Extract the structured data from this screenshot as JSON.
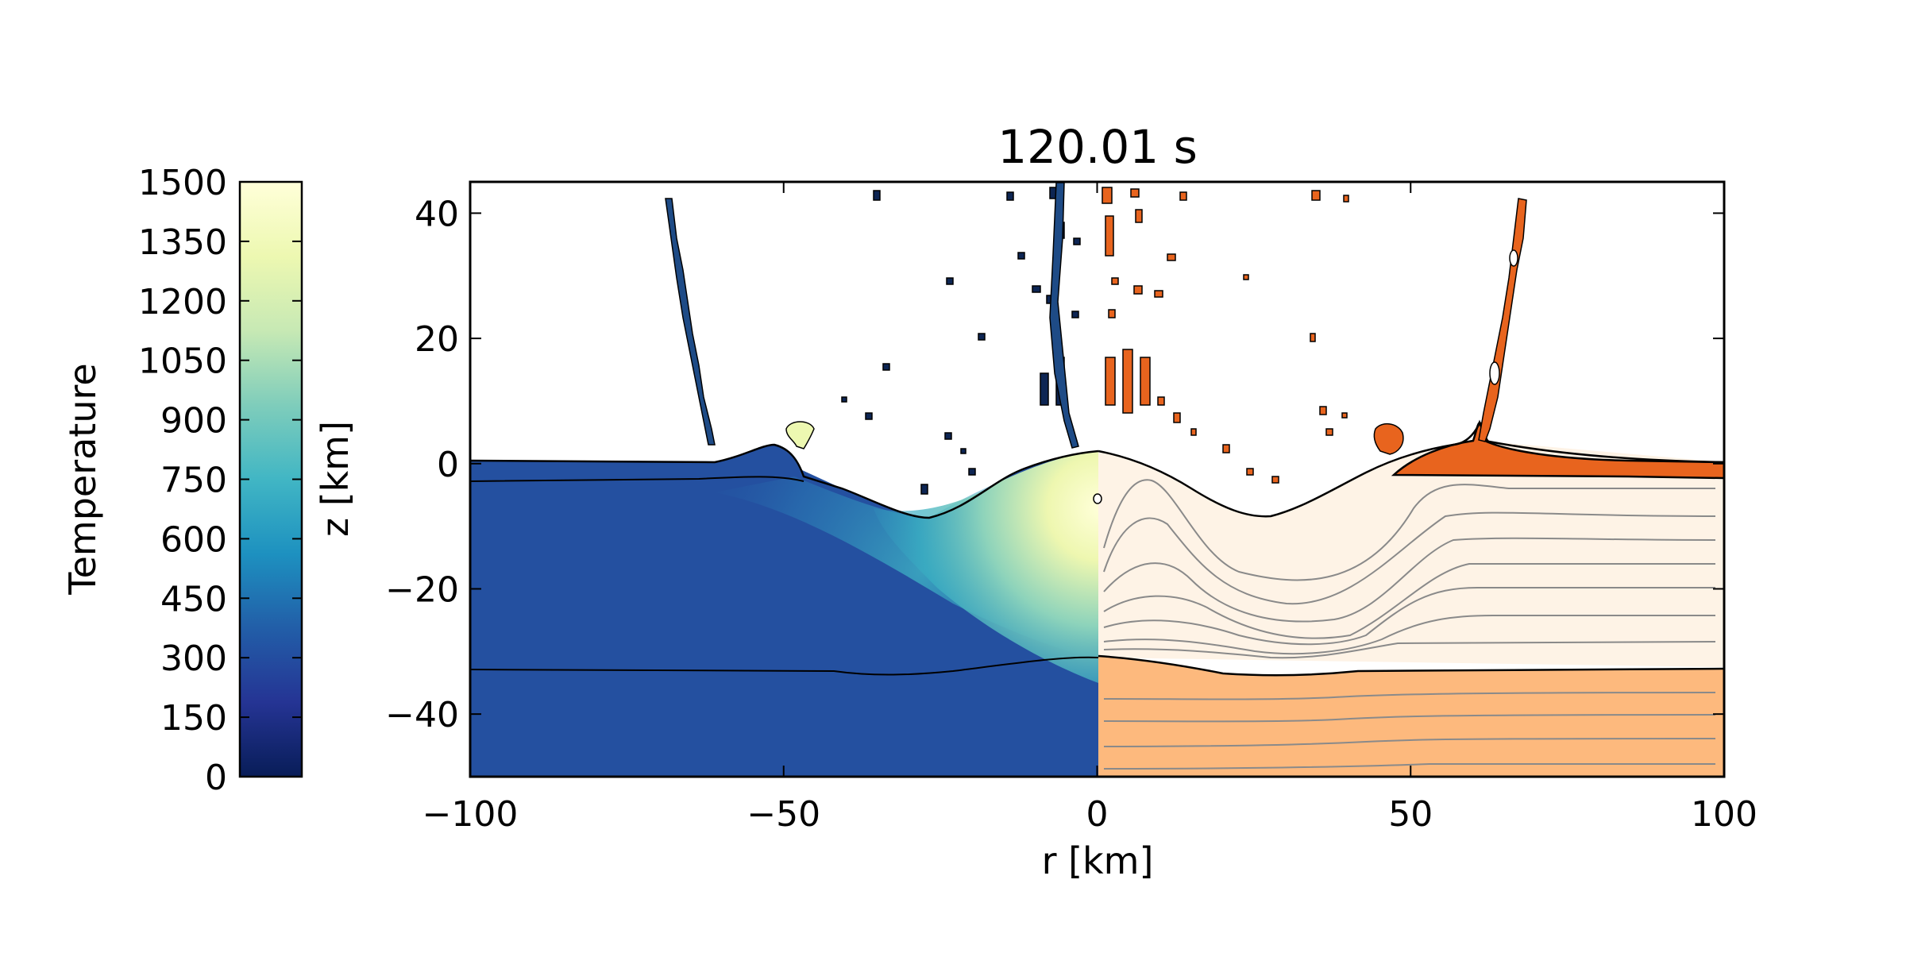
{
  "chart_data": {
    "type": "heatmap",
    "title": "120.01 s",
    "xlabel": "r [km]",
    "ylabel": "z [km]",
    "xlim": [
      -100,
      100
    ],
    "ylim": [
      -50,
      45
    ],
    "xticks": [
      -100,
      -50,
      0,
      50,
      100
    ],
    "xtick_labels": [
      "−100",
      "−50",
      "0",
      "50",
      "100"
    ],
    "yticks": [
      -40,
      -20,
      0,
      20,
      40
    ],
    "ytick_labels": [
      "−40",
      "−20",
      "0",
      "20",
      "40"
    ],
    "colorbar": {
      "label": "Temperature",
      "range": [
        0,
        1500
      ],
      "ticks": [
        0,
        150,
        300,
        450,
        600,
        750,
        900,
        1050,
        1200,
        1350,
        1500
      ],
      "tick_labels": [
        "0",
        "150",
        "300",
        "450",
        "600",
        "750",
        "900",
        "1050",
        "1200",
        "1350",
        "1500"
      ],
      "colormap": [
        "#081d58",
        "#253494",
        "#225ea8",
        "#1d91c0",
        "#41b6c4",
        "#7fcdbb",
        "#c7e9b4",
        "#edf8b1",
        "#ffffd9"
      ]
    },
    "left_panel": "temperature field (r < 0)",
    "right_panel": "material tracer with streamlines (r > 0)",
    "material_colors": {
      "top_layer": "#e8641e",
      "upper_layer": "#fef3e6",
      "lower_layer": "#fdb97d",
      "contour": "#000000",
      "streamline": "#808080"
    },
    "surface_profile": [
      [
        0,
        0.2
      ],
      [
        5,
        -0.5
      ],
      [
        10,
        -2
      ],
      [
        15,
        -4
      ],
      [
        20,
        -6.5
      ],
      [
        25,
        -8.5
      ],
      [
        30,
        -9
      ],
      [
        35,
        -8
      ],
      [
        40,
        -6
      ],
      [
        45,
        -3
      ],
      [
        50,
        -1
      ],
      [
        55,
        1
      ],
      [
        60,
        3
      ],
      [
        62,
        4.5
      ],
      [
        66,
        1.2
      ],
      [
        75,
        0.5
      ],
      [
        85,
        0.2
      ],
      [
        100,
        0
      ]
    ],
    "layer_boundary_profile": [
      [
        0,
        -31
      ],
      [
        10,
        -31.5
      ],
      [
        20,
        -33
      ],
      [
        30,
        -33.8
      ],
      [
        40,
        -33.5
      ],
      [
        50,
        -33
      ],
      [
        60,
        -32.8
      ],
      [
        100,
        -32.7
      ]
    ],
    "ejecta_curtain": [
      [
        62,
        4
      ],
      [
        64,
        10
      ],
      [
        65,
        17
      ],
      [
        66,
        24
      ],
      [
        67,
        32
      ],
      [
        68,
        42
      ]
    ]
  }
}
